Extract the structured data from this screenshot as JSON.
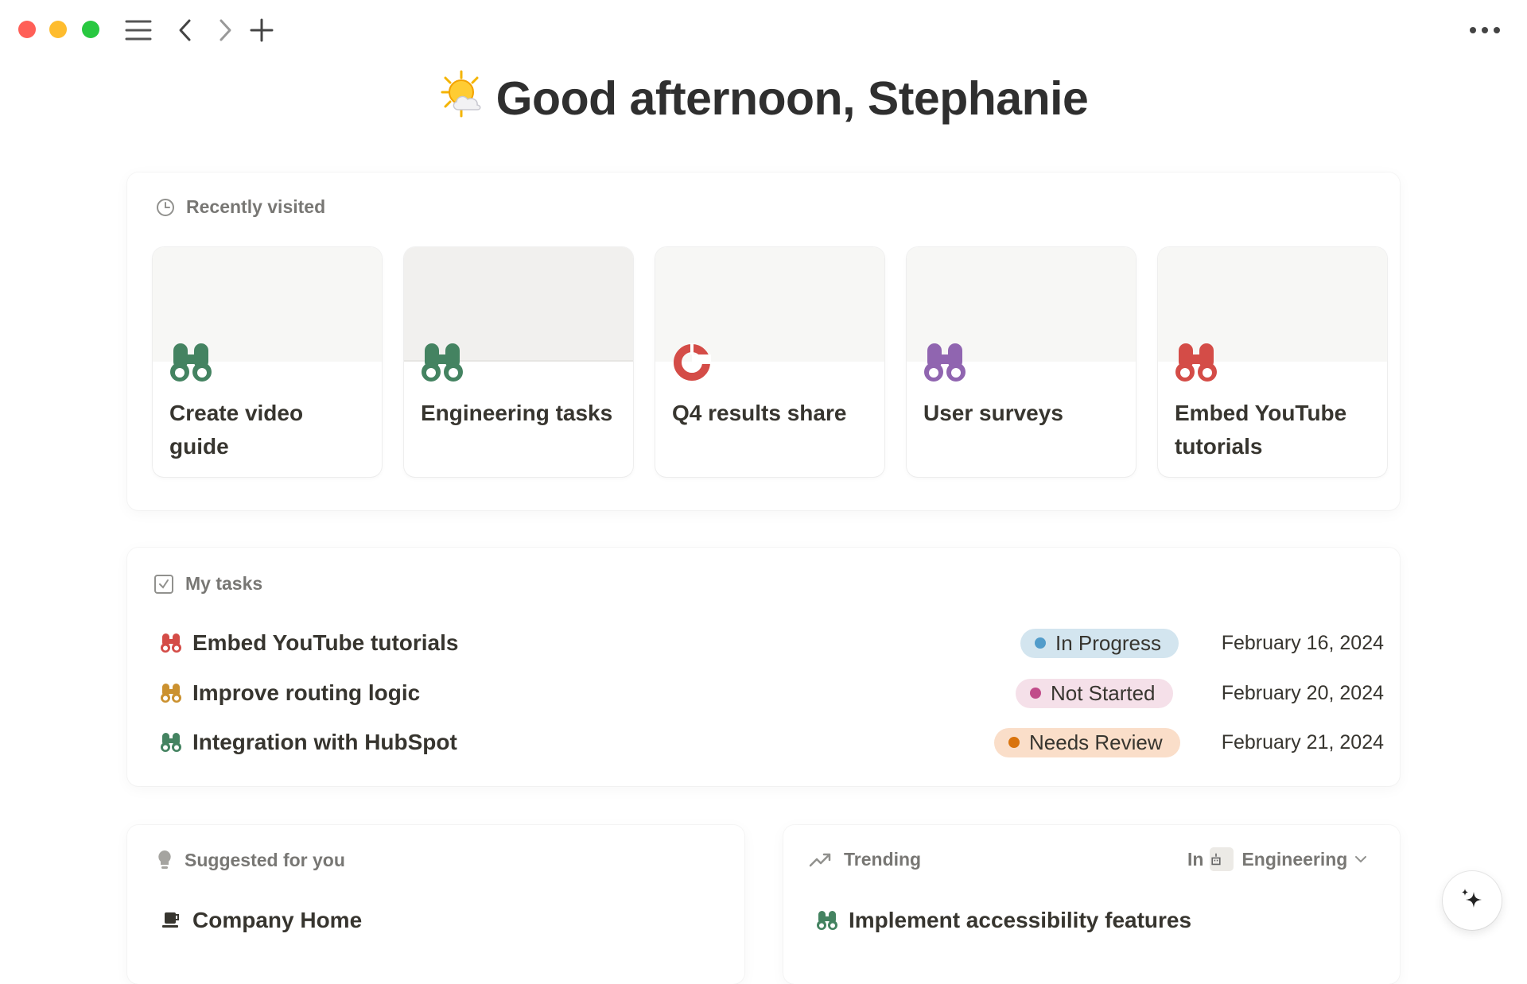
{
  "window": {
    "controls": {
      "close_color": "#ff5f57",
      "minimize_color": "#febc2e",
      "zoom_color": "#28c840"
    },
    "toolbar": {
      "menu_icon": "hamburger-icon",
      "back_icon": "chevron-left-icon",
      "forward_icon": "chevron-right-icon",
      "new_icon": "plus-icon",
      "more_icon": "ellipsis-icon"
    }
  },
  "greeting": {
    "emoji": "sun-behind-cloud",
    "text": "Good afternoon, Stephanie"
  },
  "recently_visited": {
    "header": "Recently visited",
    "icon": "clock-icon",
    "items": [
      {
        "title": "Create video guide",
        "icon": "binoculars-icon",
        "color": "#448361"
      },
      {
        "title": "Engineering tasks",
        "icon": "binoculars-icon",
        "color": "#448361"
      },
      {
        "title": "Q4 results share",
        "icon": "pie-chart-icon",
        "color": "#d44c47"
      },
      {
        "title": "User surveys",
        "icon": "binoculars-icon",
        "color": "#9065b0"
      },
      {
        "title": "Embed YouTube tutorials",
        "icon": "binoculars-icon",
        "color": "#d44c47"
      }
    ]
  },
  "my_tasks": {
    "header": "My tasks",
    "icon": "checkbox-icon",
    "rows": [
      {
        "title": "Embed YouTube tutorials",
        "icon_color": "#d44c47",
        "status": "In Progress",
        "status_bg": "#d3e5ef",
        "status_dot": "#529cca",
        "date": "February 16, 2024"
      },
      {
        "title": "Improve routing logic",
        "icon_color": "#cb912f",
        "status": "Not Started",
        "status_bg": "#f5e0e9",
        "status_dot": "#c14c8a",
        "date": "February 20, 2024"
      },
      {
        "title": "Integration with HubSpot",
        "icon_color": "#448361",
        "status": "Needs Review",
        "status_bg": "#fadec9",
        "status_dot": "#d9730d",
        "date": "February 21, 2024"
      }
    ]
  },
  "suggested": {
    "header": "Suggested for you",
    "icon": "lightbulb-icon",
    "items": [
      {
        "title": "Company Home",
        "icon": "coffee-icon"
      }
    ]
  },
  "trending": {
    "header": "Trending",
    "icon": "trending-up-icon",
    "filter_prefix": "In",
    "filter_value": "Engineering",
    "items": [
      {
        "title": "Implement accessibility features",
        "icon_color": "#448361"
      }
    ]
  },
  "assistant": {
    "icon": "sparkle-icon"
  }
}
